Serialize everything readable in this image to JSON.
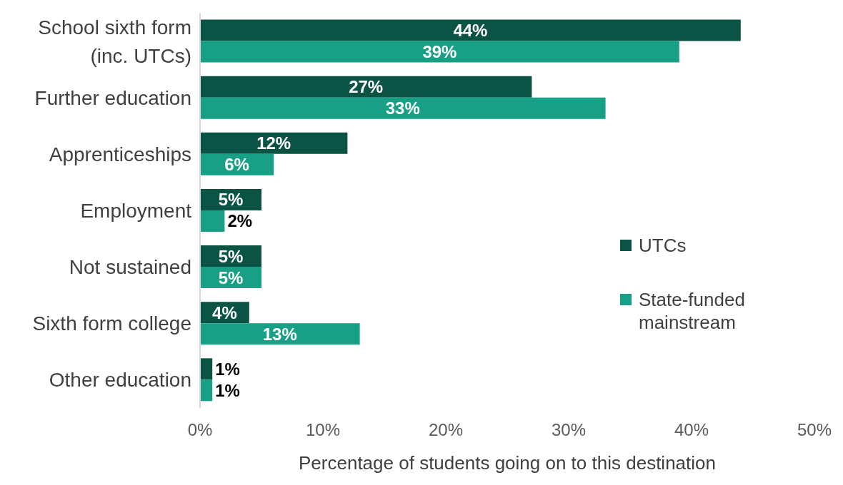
{
  "chart_data": {
    "type": "bar",
    "orientation": "horizontal",
    "xlabel": "Percentage of students going on to this destination",
    "categories": [
      "School sixth form (inc. UTCs)",
      "Further education",
      "Apprenticeships",
      "Employment",
      "Not sustained",
      "Sixth form college",
      "Other education"
    ],
    "series": [
      {
        "name": "UTCs",
        "color": "#0b5345",
        "values": [
          44,
          27,
          12,
          5,
          5,
          4,
          1
        ],
        "value_labels": [
          "44%",
          "27%",
          "12%",
          "5%",
          "5%",
          "4%",
          "1%"
        ]
      },
      {
        "name": "State-funded mainstream",
        "color": "#17a085",
        "values": [
          39,
          33,
          6,
          2,
          5,
          13,
          1
        ],
        "value_labels": [
          "39%",
          "33%",
          "6%",
          "2%",
          "5%",
          "13%",
          "1%"
        ]
      }
    ],
    "xlim": [
      0,
      50
    ],
    "xticks": [
      {
        "value": 0,
        "label": "0%"
      },
      {
        "value": 10,
        "label": "10%"
      },
      {
        "value": 20,
        "label": "20%"
      },
      {
        "value": 30,
        "label": "30%"
      },
      {
        "value": 40,
        "label": "40%"
      },
      {
        "value": 50,
        "label": "50%"
      }
    ],
    "grid": false,
    "legend": "right"
  }
}
